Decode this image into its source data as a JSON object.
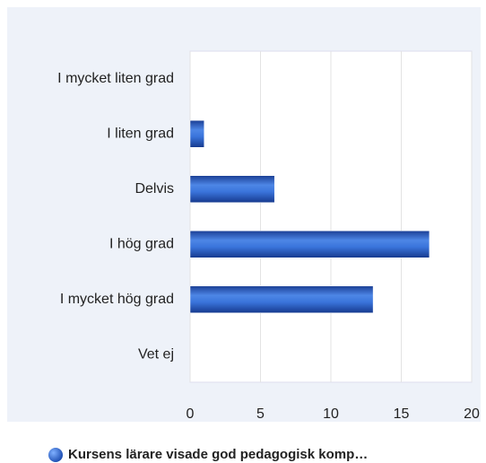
{
  "chart_data": {
    "type": "bar",
    "orientation": "horizontal",
    "categories": [
      "I mycket liten grad",
      "I liten grad",
      "Delvis",
      "I hög grad",
      "I mycket hög grad",
      "Vet ej"
    ],
    "series": [
      {
        "name": "Kursens lärare visade god pedagogisk komp…",
        "color": "#2a62c9",
        "values": [
          0,
          1,
          6,
          17,
          13,
          0
        ]
      }
    ],
    "xlim": [
      0,
      20
    ],
    "xticks": [
      0,
      5,
      10,
      15,
      20
    ],
    "grid": true,
    "legend": "bottom"
  }
}
